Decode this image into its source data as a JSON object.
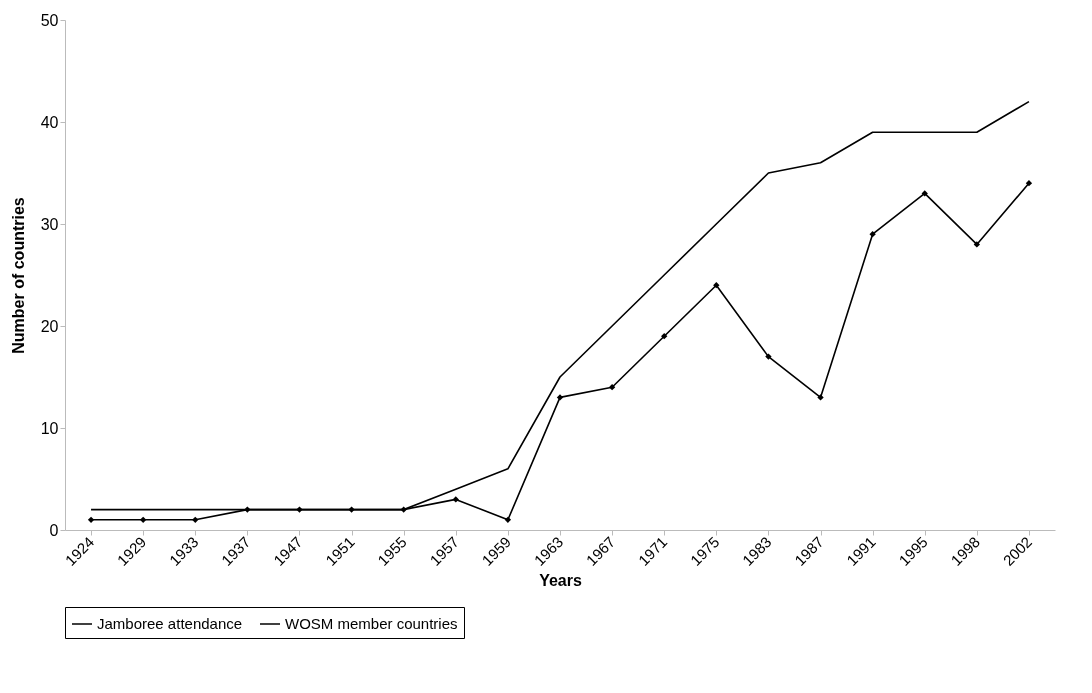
{
  "chart_data": {
    "type": "line",
    "xlabel": "Years",
    "ylabel": "Number of countries",
    "categories": [
      "1924",
      "1929",
      "1933",
      "1937",
      "1947",
      "1951",
      "1955",
      "1957",
      "1959",
      "1963",
      "1967",
      "1971",
      "1975",
      "1983",
      "1987",
      "1991",
      "1995",
      "1998",
      "2002"
    ],
    "series": [
      {
        "name": "Jamboree attendance",
        "color": "#000000",
        "marker": "diamond",
        "values": [
          1,
          1,
          1,
          2,
          2,
          2,
          2,
          3,
          1,
          13,
          14,
          19,
          24,
          17,
          13,
          29,
          33,
          28,
          34
        ]
      },
      {
        "name": "WOSM member countries",
        "color": "#000000",
        "marker": "none",
        "values": [
          2,
          2,
          2,
          2,
          2,
          2,
          2,
          4,
          6,
          15,
          20,
          25,
          30,
          35,
          36,
          39,
          39,
          39,
          42
        ]
      }
    ],
    "ylim": [
      0,
      50
    ],
    "yticks": [
      0,
      10,
      20,
      30,
      40,
      50
    ],
    "grid": false,
    "legend": "bottom"
  }
}
